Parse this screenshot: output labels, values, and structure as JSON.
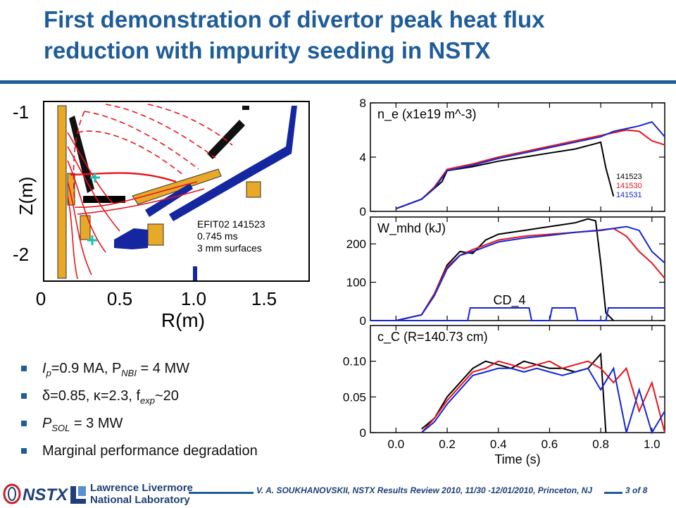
{
  "slide": {
    "title_line1": "First demonstration of divertor peak heat flux",
    "title_line2": "reduction with impurity seeding in NSTX",
    "colors": {
      "title": "#1f5c9a",
      "shot_141523": "#000000",
      "shot_141530": "#e8141c",
      "shot_141531": "#1426d2"
    }
  },
  "equilibrium": {
    "ylabel": "Z(m)",
    "xlabel": "R(m)",
    "y_ticks": [
      "-1",
      "-2"
    ],
    "x_ticks": [
      "0",
      "0.5",
      "1.0",
      "1.5"
    ],
    "annotation_line1": "EFIT02 141523",
    "annotation_line2": "0.745 ms",
    "annotation_line3": "3 mm surfaces"
  },
  "bullets": [
    {
      "a": "I",
      "a_sub": "p",
      "b": "=0.9 MA, P",
      "b_sub": "NBI",
      "c": " = 4 MW"
    },
    {
      "a": "δ=0.85, κ=2.3, f",
      "a_sub": "exp",
      "b": "~20",
      "b_sub": "",
      "c": ""
    },
    {
      "a": "P",
      "a_sub": "SOL",
      "b": " = 3 MW",
      "b_sub": "",
      "c": ""
    },
    {
      "a": "Marginal performance degradation",
      "a_sub": "",
      "b": "",
      "b_sub": "",
      "c": ""
    }
  ],
  "footer": {
    "logo_nstx": "NSTX",
    "logo_llnl_line1": "Lawrence Livermore",
    "logo_llnl_line2": "National Laboratory",
    "citation": "V. A. SOUKHANOVSKII, NSTX Results Review 2010, 11/30 -12/01/2010, Princeton, NJ",
    "page": "3 of 8"
  },
  "chart_data": [
    {
      "type": "line",
      "title": "n_e (x1e19 m^-3)",
      "xlim": [
        -0.1,
        1.05
      ],
      "ylim": [
        0,
        8
      ],
      "y_ticks": [
        0,
        4,
        8
      ],
      "legend": [
        "141523",
        "141530",
        "141531"
      ],
      "legend_placement": "right",
      "series": [
        {
          "name": "141523",
          "color": "#000000",
          "x": [
            0.0,
            0.1,
            0.15,
            0.18,
            0.2,
            0.3,
            0.4,
            0.5,
            0.6,
            0.7,
            0.78,
            0.8,
            0.82,
            0.85
          ],
          "y": [
            0.2,
            0.9,
            1.7,
            2.2,
            3.0,
            3.3,
            3.7,
            4.0,
            4.3,
            4.6,
            5.0,
            5.1,
            3.2,
            1.1
          ]
        },
        {
          "name": "141530",
          "color": "#e8141c",
          "x": [
            0.0,
            0.1,
            0.15,
            0.2,
            0.3,
            0.4,
            0.5,
            0.6,
            0.7,
            0.8,
            0.85,
            0.9,
            0.95,
            1.0,
            1.05
          ],
          "y": [
            0.2,
            0.9,
            1.8,
            3.1,
            3.5,
            4.0,
            4.4,
            4.8,
            5.2,
            5.6,
            5.8,
            6.0,
            5.9,
            5.2,
            4.9
          ]
        },
        {
          "name": "141531",
          "color": "#1426d2",
          "x": [
            0.0,
            0.1,
            0.15,
            0.2,
            0.3,
            0.4,
            0.5,
            0.6,
            0.7,
            0.8,
            0.85,
            0.9,
            0.95,
            1.0,
            1.05
          ],
          "y": [
            0.2,
            0.9,
            1.7,
            3.0,
            3.4,
            3.9,
            4.3,
            4.7,
            5.1,
            5.5,
            5.9,
            6.1,
            6.3,
            6.6,
            5.5
          ]
        }
      ]
    },
    {
      "type": "line",
      "title": "W_mhd (kJ)",
      "annotation": "CD_4",
      "xlim": [
        -0.1,
        1.05
      ],
      "ylim": [
        0,
        270
      ],
      "y_ticks": [
        0,
        100,
        200
      ],
      "series": [
        {
          "name": "141523",
          "color": "#000000",
          "x": [
            0.0,
            0.1,
            0.15,
            0.2,
            0.25,
            0.3,
            0.35,
            0.4,
            0.45,
            0.5,
            0.6,
            0.7,
            0.75,
            0.78,
            0.8,
            0.82,
            0.85
          ],
          "y": [
            0,
            15,
            70,
            145,
            180,
            175,
            210,
            225,
            230,
            235,
            245,
            255,
            265,
            260,
            150,
            20,
            0
          ]
        },
        {
          "name": "141530",
          "color": "#e8141c",
          "x": [
            0.0,
            0.1,
            0.15,
            0.2,
            0.25,
            0.3,
            0.4,
            0.5,
            0.6,
            0.7,
            0.8,
            0.85,
            0.9,
            0.95,
            1.0,
            1.05
          ],
          "y": [
            0,
            15,
            70,
            140,
            170,
            185,
            210,
            220,
            225,
            230,
            235,
            240,
            220,
            180,
            150,
            110
          ]
        },
        {
          "name": "141531",
          "color": "#1426d2",
          "x": [
            0.0,
            0.1,
            0.15,
            0.2,
            0.25,
            0.3,
            0.4,
            0.5,
            0.6,
            0.7,
            0.8,
            0.85,
            0.9,
            0.95,
            1.0,
            1.05
          ],
          "y": [
            0,
            15,
            65,
            135,
            170,
            180,
            205,
            215,
            222,
            230,
            236,
            240,
            245,
            235,
            180,
            150
          ]
        },
        {
          "name": "CD_4",
          "color": "#1426d2",
          "x": [
            -0.1,
            0.28,
            0.29,
            0.52,
            0.53,
            0.6,
            0.61,
            0.7,
            0.71,
            0.82,
            0.83,
            1.05
          ],
          "y": [
            0,
            0,
            33,
            33,
            0,
            0,
            33,
            33,
            0,
            0,
            33,
            33
          ]
        }
      ]
    },
    {
      "type": "line",
      "title": "c_C (R=140.73 cm)",
      "xlabel": "Time (s)",
      "xlim": [
        -0.1,
        1.05
      ],
      "ylim": [
        0,
        0.15
      ],
      "y_ticks": [
        0.0,
        0.05,
        0.1
      ],
      "x_ticks": [
        0.0,
        0.2,
        0.4,
        0.6,
        0.8,
        1.0
      ],
      "series": [
        {
          "name": "141523",
          "color": "#000000",
          "x": [
            0.1,
            0.15,
            0.2,
            0.25,
            0.3,
            0.35,
            0.4,
            0.45,
            0.5,
            0.55,
            0.6,
            0.65,
            0.7,
            0.75,
            0.8,
            0.82
          ],
          "y": [
            0.005,
            0.02,
            0.05,
            0.07,
            0.09,
            0.1,
            0.095,
            0.09,
            0.1,
            0.095,
            0.09,
            0.09,
            0.085,
            0.09,
            0.11,
            0.0
          ]
        },
        {
          "name": "141530",
          "color": "#e8141c",
          "x": [
            0.1,
            0.15,
            0.2,
            0.25,
            0.3,
            0.35,
            0.4,
            0.45,
            0.5,
            0.55,
            0.6,
            0.65,
            0.7,
            0.75,
            0.8,
            0.85,
            0.9,
            0.95,
            1.0,
            1.05
          ],
          "y": [
            0.0,
            0.02,
            0.045,
            0.065,
            0.085,
            0.09,
            0.1,
            0.095,
            0.09,
            0.095,
            0.1,
            0.09,
            0.095,
            0.1,
            0.09,
            0.07,
            0.09,
            0.03,
            0.07,
            0.0
          ]
        },
        {
          "name": "141531",
          "color": "#1426d2",
          "x": [
            0.1,
            0.15,
            0.2,
            0.25,
            0.3,
            0.35,
            0.4,
            0.45,
            0.5,
            0.55,
            0.6,
            0.65,
            0.7,
            0.75,
            0.8,
            0.85,
            0.9,
            0.95,
            1.0,
            1.05
          ],
          "y": [
            0.0,
            0.015,
            0.04,
            0.06,
            0.08,
            0.085,
            0.09,
            0.09,
            0.085,
            0.09,
            0.085,
            0.08,
            0.085,
            0.09,
            0.06,
            0.09,
            0.0,
            0.06,
            0.0,
            0.03
          ]
        }
      ]
    }
  ]
}
